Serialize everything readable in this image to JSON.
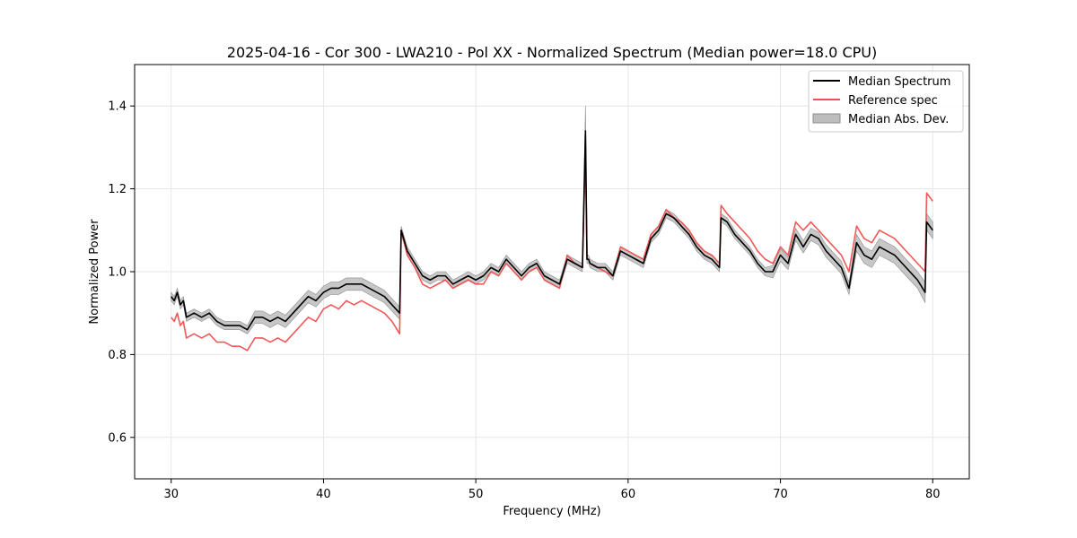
{
  "chart_data": {
    "type": "line",
    "title": "2025-04-16 - Cor 300 - LWA210 - Pol XX - Normalized Spectrum (Median power=18.0 CPU)",
    "xlabel": "Frequency (MHz)",
    "ylabel": "Normalized Power",
    "xlim": [
      27.6,
      82.4
    ],
    "ylim": [
      0.5,
      1.5
    ],
    "xticks": [
      30,
      40,
      50,
      60,
      70,
      80
    ],
    "yticks": [
      0.6,
      0.8,
      1.0,
      1.2,
      1.4
    ],
    "xtick_labels": [
      "30",
      "40",
      "50",
      "60",
      "70",
      "80"
    ],
    "ytick_labels": [
      "0.6",
      "0.8",
      "1.0",
      "1.2",
      "1.4"
    ],
    "grid": true,
    "legend_position": "top-right",
    "legend": [
      "Median Spectrum",
      "Reference spec",
      "Median Abs. Dev."
    ],
    "colors": {
      "median": "#000000",
      "reference": "#f05050",
      "mad_fill": "#bdbdbd",
      "mad_edge": "#8c8c8c",
      "grid": "#e6e6e6",
      "axes": "#000000"
    },
    "series": [
      {
        "name": "Median Spectrum",
        "x": [
          30.0,
          30.2,
          30.4,
          30.6,
          30.8,
          31.0,
          31.5,
          32.0,
          32.5,
          33.0,
          33.5,
          34.0,
          34.5,
          35.0,
          35.5,
          36.0,
          36.5,
          37.0,
          37.5,
          38.0,
          38.5,
          39.0,
          39.5,
          40.0,
          40.5,
          41.0,
          41.5,
          42.0,
          42.5,
          43.0,
          43.5,
          44.0,
          44.5,
          45.0,
          45.1,
          45.5,
          46.0,
          46.5,
          47.0,
          47.5,
          48.0,
          48.5,
          49.0,
          49.5,
          50.0,
          50.5,
          51.0,
          51.5,
          52.0,
          52.5,
          53.0,
          53.5,
          54.0,
          54.5,
          55.0,
          55.5,
          56.0,
          56.5,
          57.0,
          57.2,
          57.3,
          57.4,
          57.5,
          58.0,
          58.5,
          59.0,
          59.5,
          60.0,
          60.5,
          61.0,
          61.5,
          62.0,
          62.5,
          63.0,
          63.5,
          64.0,
          64.5,
          65.0,
          65.5,
          66.0,
          66.1,
          66.5,
          67.0,
          67.5,
          68.0,
          68.5,
          69.0,
          69.5,
          70.0,
          70.5,
          71.0,
          71.5,
          72.0,
          72.5,
          73.0,
          73.5,
          74.0,
          74.5,
          75.0,
          75.5,
          76.0,
          76.5,
          77.0,
          77.5,
          78.0,
          78.5,
          79.0,
          79.5,
          79.6,
          80.0
        ],
        "values": [
          0.94,
          0.93,
          0.95,
          0.92,
          0.93,
          0.89,
          0.9,
          0.89,
          0.9,
          0.88,
          0.87,
          0.87,
          0.87,
          0.86,
          0.89,
          0.89,
          0.88,
          0.89,
          0.88,
          0.9,
          0.92,
          0.94,
          0.93,
          0.95,
          0.96,
          0.96,
          0.97,
          0.97,
          0.97,
          0.96,
          0.95,
          0.94,
          0.92,
          0.9,
          1.1,
          1.05,
          1.02,
          0.99,
          0.98,
          0.99,
          0.99,
          0.97,
          0.98,
          0.99,
          0.98,
          0.99,
          1.01,
          1.0,
          1.03,
          1.01,
          0.99,
          1.01,
          1.02,
          0.99,
          0.98,
          0.97,
          1.03,
          1.02,
          1.01,
          1.34,
          1.03,
          1.03,
          1.02,
          1.01,
          1.01,
          0.99,
          1.05,
          1.04,
          1.03,
          1.02,
          1.08,
          1.1,
          1.14,
          1.13,
          1.11,
          1.09,
          1.06,
          1.04,
          1.03,
          1.01,
          1.13,
          1.12,
          1.09,
          1.07,
          1.05,
          1.02,
          1.0,
          1.0,
          1.04,
          1.02,
          1.09,
          1.06,
          1.09,
          1.08,
          1.05,
          1.03,
          1.01,
          0.96,
          1.07,
          1.04,
          1.03,
          1.06,
          1.05,
          1.04,
          1.02,
          1.0,
          0.98,
          0.95,
          1.12,
          1.1
        ]
      },
      {
        "name": "Reference spec",
        "x": [
          30.0,
          30.2,
          30.4,
          30.6,
          30.8,
          31.0,
          31.5,
          32.0,
          32.5,
          33.0,
          33.5,
          34.0,
          34.5,
          35.0,
          35.5,
          36.0,
          36.5,
          37.0,
          37.5,
          38.0,
          38.5,
          39.0,
          39.5,
          40.0,
          40.5,
          41.0,
          41.5,
          42.0,
          42.5,
          43.0,
          43.5,
          44.0,
          44.5,
          45.0,
          45.1,
          45.5,
          46.0,
          46.5,
          47.0,
          47.5,
          48.0,
          48.5,
          49.0,
          49.5,
          50.0,
          50.5,
          51.0,
          51.5,
          52.0,
          52.5,
          53.0,
          53.5,
          54.0,
          54.5,
          55.0,
          55.5,
          56.0,
          56.5,
          57.0,
          57.2,
          57.3,
          57.4,
          57.5,
          58.0,
          58.5,
          59.0,
          59.5,
          60.0,
          60.5,
          61.0,
          61.5,
          62.0,
          62.5,
          63.0,
          63.5,
          64.0,
          64.5,
          65.0,
          65.5,
          66.0,
          66.1,
          66.5,
          67.0,
          67.5,
          68.0,
          68.5,
          69.0,
          69.5,
          70.0,
          70.5,
          71.0,
          71.5,
          72.0,
          72.5,
          73.0,
          73.5,
          74.0,
          74.5,
          75.0,
          75.5,
          76.0,
          76.5,
          77.0,
          77.5,
          78.0,
          78.5,
          79.0,
          79.5,
          79.6,
          80.0
        ],
        "values": [
          0.89,
          0.88,
          0.9,
          0.87,
          0.88,
          0.84,
          0.85,
          0.84,
          0.85,
          0.83,
          0.83,
          0.82,
          0.82,
          0.81,
          0.84,
          0.84,
          0.83,
          0.84,
          0.83,
          0.85,
          0.87,
          0.89,
          0.88,
          0.91,
          0.92,
          0.91,
          0.93,
          0.92,
          0.93,
          0.92,
          0.91,
          0.9,
          0.88,
          0.85,
          1.1,
          1.04,
          1.01,
          0.97,
          0.96,
          0.97,
          0.98,
          0.96,
          0.97,
          0.98,
          0.97,
          0.97,
          1.0,
          0.99,
          1.02,
          1.0,
          0.98,
          1.0,
          1.01,
          0.98,
          0.97,
          0.96,
          1.04,
          1.02,
          1.01,
          1.3,
          1.03,
          1.03,
          1.02,
          1.01,
          1.0,
          0.99,
          1.06,
          1.05,
          1.04,
          1.03,
          1.09,
          1.11,
          1.15,
          1.13,
          1.12,
          1.1,
          1.07,
          1.05,
          1.04,
          1.02,
          1.16,
          1.14,
          1.12,
          1.1,
          1.08,
          1.05,
          1.03,
          1.02,
          1.06,
          1.04,
          1.12,
          1.1,
          1.12,
          1.1,
          1.08,
          1.06,
          1.04,
          1.0,
          1.11,
          1.08,
          1.07,
          1.1,
          1.09,
          1.08,
          1.06,
          1.04,
          1.02,
          1.0,
          1.19,
          1.17
        ]
      },
      {
        "name": "Median Abs. Dev.",
        "x": [
          30.0,
          30.2,
          30.4,
          30.6,
          30.8,
          31.0,
          31.5,
          32.0,
          32.5,
          33.0,
          33.5,
          34.0,
          34.5,
          35.0,
          35.5,
          36.0,
          36.5,
          37.0,
          37.5,
          38.0,
          38.5,
          39.0,
          39.5,
          40.0,
          40.5,
          41.0,
          41.5,
          42.0,
          42.5,
          43.0,
          43.5,
          44.0,
          44.5,
          45.0,
          45.1,
          45.5,
          46.0,
          46.5,
          47.0,
          47.5,
          48.0,
          48.5,
          49.0,
          49.5,
          50.0,
          50.5,
          51.0,
          51.5,
          52.0,
          52.5,
          53.0,
          53.5,
          54.0,
          54.5,
          55.0,
          55.5,
          56.0,
          56.5,
          57.0,
          57.2,
          57.3,
          57.4,
          57.5,
          58.0,
          58.5,
          59.0,
          59.5,
          60.0,
          60.5,
          61.0,
          61.5,
          62.0,
          62.5,
          63.0,
          63.5,
          64.0,
          64.5,
          65.0,
          65.5,
          66.0,
          66.1,
          66.5,
          67.0,
          67.5,
          68.0,
          68.5,
          69.0,
          69.5,
          70.0,
          70.5,
          71.0,
          71.5,
          72.0,
          72.5,
          73.0,
          73.5,
          74.0,
          74.5,
          75.0,
          75.5,
          76.0,
          76.5,
          77.0,
          77.5,
          78.0,
          78.5,
          79.0,
          79.5,
          79.6,
          80.0
        ],
        "lower": [
          0.93,
          0.92,
          0.94,
          0.91,
          0.92,
          0.88,
          0.89,
          0.88,
          0.89,
          0.87,
          0.86,
          0.86,
          0.86,
          0.85,
          0.875,
          0.875,
          0.865,
          0.875,
          0.865,
          0.885,
          0.905,
          0.925,
          0.915,
          0.935,
          0.945,
          0.945,
          0.955,
          0.955,
          0.955,
          0.945,
          0.935,
          0.925,
          0.905,
          0.885,
          1.09,
          1.04,
          1.01,
          0.98,
          0.97,
          0.98,
          0.98,
          0.96,
          0.97,
          0.98,
          0.97,
          0.98,
          1.0,
          0.99,
          1.02,
          1.0,
          0.98,
          1.0,
          1.01,
          0.98,
          0.97,
          0.96,
          1.02,
          1.01,
          1.0,
          1.29,
          1.02,
          1.02,
          1.01,
          1.0,
          1.0,
          0.98,
          1.04,
          1.03,
          1.02,
          1.01,
          1.07,
          1.09,
          1.13,
          1.12,
          1.1,
          1.08,
          1.05,
          1.03,
          1.02,
          1.0,
          1.12,
          1.11,
          1.08,
          1.06,
          1.04,
          1.01,
          0.99,
          0.985,
          1.025,
          1.005,
          1.075,
          1.045,
          1.075,
          1.065,
          1.035,
          1.015,
          0.995,
          0.945,
          1.05,
          1.02,
          1.01,
          1.04,
          1.03,
          1.02,
          1.0,
          0.98,
          0.96,
          0.925,
          1.1,
          1.08
        ],
        "upper": [
          0.95,
          0.94,
          0.96,
          0.93,
          0.94,
          0.9,
          0.91,
          0.9,
          0.91,
          0.89,
          0.88,
          0.88,
          0.88,
          0.87,
          0.905,
          0.905,
          0.895,
          0.905,
          0.895,
          0.915,
          0.935,
          0.955,
          0.945,
          0.965,
          0.975,
          0.975,
          0.985,
          0.985,
          0.985,
          0.975,
          0.965,
          0.955,
          0.935,
          0.915,
          1.11,
          1.06,
          1.03,
          1.0,
          0.99,
          1.0,
          1.0,
          0.98,
          0.99,
          1.0,
          0.99,
          1.0,
          1.02,
          1.01,
          1.04,
          1.02,
          1.0,
          1.02,
          1.03,
          1.0,
          0.99,
          0.98,
          1.04,
          1.03,
          1.02,
          1.4,
          1.04,
          1.04,
          1.03,
          1.02,
          1.02,
          1.0,
          1.06,
          1.05,
          1.04,
          1.03,
          1.09,
          1.11,
          1.15,
          1.14,
          1.12,
          1.1,
          1.07,
          1.05,
          1.04,
          1.02,
          1.14,
          1.13,
          1.1,
          1.08,
          1.06,
          1.03,
          1.01,
          1.015,
          1.055,
          1.035,
          1.105,
          1.075,
          1.105,
          1.095,
          1.065,
          1.045,
          1.025,
          0.975,
          1.09,
          1.06,
          1.05,
          1.08,
          1.07,
          1.06,
          1.04,
          1.02,
          1.0,
          0.975,
          1.14,
          1.12
        ]
      }
    ]
  }
}
